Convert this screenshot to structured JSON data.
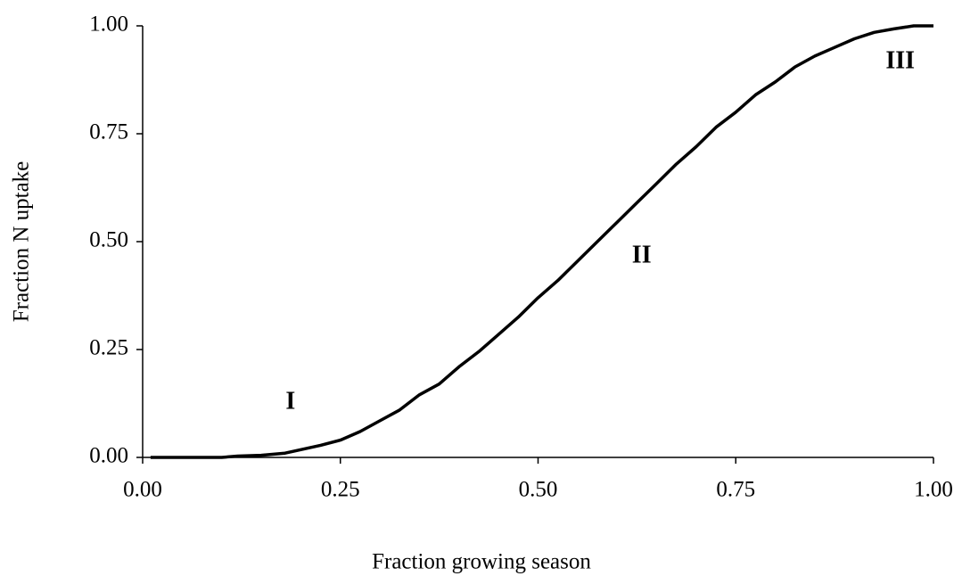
{
  "chart_data": {
    "type": "line",
    "xlabel": "Fraction growing season",
    "ylabel": "Fraction N uptake",
    "x": [
      0.01,
      0.05,
      0.1,
      0.12,
      0.15,
      0.18,
      0.2,
      0.225,
      0.25,
      0.275,
      0.3,
      0.325,
      0.35,
      0.375,
      0.4,
      0.425,
      0.45,
      0.475,
      0.5,
      0.525,
      0.55,
      0.575,
      0.6,
      0.625,
      0.65,
      0.675,
      0.7,
      0.725,
      0.75,
      0.775,
      0.8,
      0.825,
      0.85,
      0.875,
      0.9,
      0.925,
      0.95,
      0.975,
      1.0
    ],
    "series": [
      {
        "name": "N uptake",
        "color": "#000000",
        "values": [
          0,
          0,
          0,
          0.003,
          0.005,
          0.01,
          0.018,
          0.028,
          0.04,
          0.06,
          0.085,
          0.11,
          0.145,
          0.17,
          0.21,
          0.245,
          0.285,
          0.325,
          0.37,
          0.41,
          0.455,
          0.5,
          0.545,
          0.59,
          0.635,
          0.68,
          0.72,
          0.765,
          0.8,
          0.84,
          0.87,
          0.905,
          0.93,
          0.95,
          0.97,
          0.985,
          0.993,
          1.0,
          1.0
        ]
      }
    ],
    "annotations": [
      "I",
      "II",
      "III"
    ],
    "xlim": [
      0,
      1
    ],
    "ylim": [
      0,
      1
    ],
    "xticks": [
      {
        "value": 0,
        "label": "0.00"
      },
      {
        "value": 0.25,
        "label": "0.25"
      },
      {
        "value": 0.5,
        "label": "0.50"
      },
      {
        "value": 0.75,
        "label": "0.75"
      },
      {
        "value": 1,
        "label": "1.00"
      }
    ],
    "yticks": [
      {
        "value": 0,
        "label": "0.00"
      },
      {
        "value": 0.25,
        "label": "0.25"
      },
      {
        "value": 0.5,
        "label": "0.50"
      },
      {
        "value": 0.75,
        "label": "0.75"
      },
      {
        "value": 1,
        "label": "1.00"
      }
    ],
    "grid": false
  }
}
